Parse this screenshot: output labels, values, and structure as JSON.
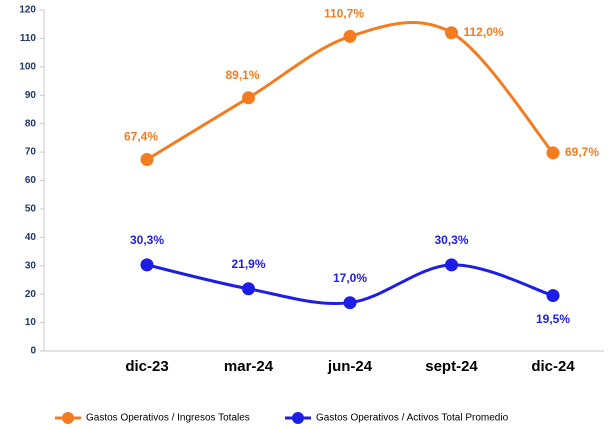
{
  "chart_data": {
    "type": "line",
    "categories": [
      "dic-23",
      "mar-24",
      "jun-24",
      "sept-24",
      "dic-24"
    ],
    "series": [
      {
        "name": "Gastos Operativos / Ingresos Totales",
        "color": "#f47c20",
        "values": [
          67.4,
          89.1,
          110.7,
          112.0,
          69.7
        ],
        "value_labels": [
          "67,4%",
          "89,1%",
          "110,7%",
          "112,0%",
          "69,7%"
        ]
      },
      {
        "name": "Gastos Operativos / Activos Total Promedio",
        "color": "#1d1de8",
        "values": [
          30.3,
          21.9,
          17.0,
          30.3,
          19.5
        ],
        "value_labels": [
          "30,3%",
          "21,9%",
          "17,0%",
          "30,3%",
          "19,5%"
        ]
      }
    ],
    "ylim": [
      0,
      120
    ],
    "yticks": [
      0,
      10,
      20,
      30,
      40,
      50,
      60,
      70,
      80,
      90,
      100,
      110,
      120
    ],
    "grid": false,
    "legend": "bottom"
  }
}
